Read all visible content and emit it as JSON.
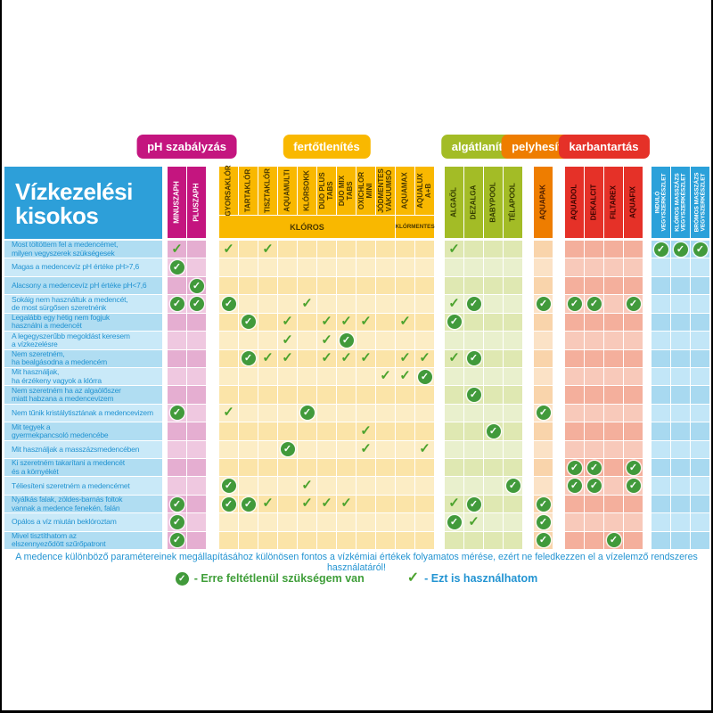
{
  "chart_data": {
    "type": "table",
    "title": "Vízkezelési kisokos",
    "footer": "A medence különböző paramétereinek megállapításához különösen fontos a vízkémiai értékek folyamatos mérése, ezért ne feledkezzen el a vízelemző rendszeres használatáról!",
    "legend": {
      "must": "- Erre feltétlenül szükségem van",
      "can": "- Ezt is használhatom"
    },
    "style": {
      "title_bg": "#2d9fd9",
      "row_label_colors": [
        "#b0ddf2",
        "#c9e9f8"
      ],
      "row_text_color": "#2394d2",
      "must_color": "#419a3b",
      "can_color": "#4ca32e"
    },
    "groups": [
      {
        "id": "ph",
        "label": "pH szabályzás",
        "color": "#c4157f",
        "cell_colors": [
          "#e5aed1",
          "#efc8e0"
        ],
        "label_color": "#ffffff"
      },
      {
        "id": "fert",
        "label": "fertőtlenítés",
        "color": "#f9b800",
        "cell_colors": [
          "#fbe4a8",
          "#fcedc5"
        ],
        "label_color": "#4a3900"
      },
      {
        "id": "alga",
        "label": "algátlanítás",
        "color": "#a3bc26",
        "cell_colors": [
          "#dfe8b2",
          "#e9f0cd"
        ],
        "label_color": "#333b00"
      },
      {
        "id": "pely",
        "label": "pelyhesítés",
        "color": "#ee7d00",
        "cell_colors": [
          "#f9d4ab",
          "#fbe2c6"
        ],
        "label_color": "#4d1d00"
      },
      {
        "id": "karb",
        "label": "karbantartás",
        "color": "#e53128",
        "cell_colors": [
          "#f4af9c",
          "#f8c9ba"
        ],
        "label_color": "#3d0400"
      },
      {
        "id": "kit",
        "label": "",
        "color": "#2ba1da",
        "cell_colors": [
          "#a8d9f0",
          "#c2e6f7"
        ],
        "label_color": "#ffffff"
      }
    ],
    "sub_bands": [
      {
        "label": "KLÓROS",
        "from": "gyorsaklor",
        "to": "jodmentes"
      },
      {
        "label": "KLÓRMENTES",
        "from": "aquamax",
        "to": "aqualux"
      }
    ],
    "columns": [
      {
        "id": "minuszaph",
        "label": "MINUSZAPH",
        "group": "ph"
      },
      {
        "id": "pluszaph",
        "label": "PLUSZAPH",
        "group": "ph"
      },
      {
        "id": "gyorsaklor",
        "label": "GYORSAKLÓR",
        "group": "fert"
      },
      {
        "id": "tartaklor",
        "label": "TARTAKLÓR",
        "group": "fert"
      },
      {
        "id": "tisztaklor",
        "label": "TISZTAKLÓR",
        "group": "fert"
      },
      {
        "id": "aquamulti",
        "label": "AQUAMULTI",
        "group": "fert"
      },
      {
        "id": "klorsokk",
        "label": "KLÓRSOKK",
        "group": "fert"
      },
      {
        "id": "duoplus",
        "label": "DUO PLUS\nTABS",
        "group": "fert"
      },
      {
        "id": "duomix",
        "label": "DUO MIX\nTABS",
        "group": "fert"
      },
      {
        "id": "oxichlor",
        "label": "OXICHLOR\nMINI",
        "group": "fert"
      },
      {
        "id": "jodmentes",
        "label": "JÓDMENTES\nVÁKUUMSÓ",
        "group": "fert"
      },
      {
        "id": "aquamax",
        "label": "AQUAMAX",
        "group": "fert"
      },
      {
        "id": "aqualux",
        "label": "AQUALUX\nA+B",
        "group": "fert"
      },
      {
        "id": "algaol",
        "label": "ALGAÖL",
        "group": "alga"
      },
      {
        "id": "dezalga",
        "label": "DEZALGA",
        "group": "alga"
      },
      {
        "id": "babypool",
        "label": "BABYPOOL",
        "group": "alga"
      },
      {
        "id": "telapool",
        "label": "TÉLAPOOL",
        "group": "alga"
      },
      {
        "id": "aquapak",
        "label": "AQUAPAK",
        "group": "pely"
      },
      {
        "id": "aquadol",
        "label": "AQUADOL",
        "group": "karb"
      },
      {
        "id": "dekalcit",
        "label": "DEKALCIT",
        "group": "karb"
      },
      {
        "id": "filtarex",
        "label": "FILTAREX",
        "group": "karb"
      },
      {
        "id": "aquafix",
        "label": "AQUAFIX",
        "group": "karb"
      },
      {
        "id": "indulo",
        "label": "INDULÓ\nVEGYSZERKÉSZLET",
        "group": "kit"
      },
      {
        "id": "kloros_masszazs",
        "label": "KLÓROS MASSZÁZS\nVEGYSZERKÉSZLET",
        "group": "kit"
      },
      {
        "id": "bromos_masszazs",
        "label": "BRÓMOS MASSZÁZS\nVEGYSZERKÉSZLET",
        "group": "kit"
      }
    ],
    "rows": [
      {
        "label": "Most töltöttem fel a medencémet,\nmilyen vegyszerek szükségesek",
        "marks": {
          "minuszaph": "can",
          "gyorsaklor": "can",
          "tisztaklor": "can",
          "algaol": "can",
          "indulo": "must",
          "kloros_masszazs": "must",
          "bromos_masszazs": "must"
        }
      },
      {
        "label": "Magas a medencevíz pH értéke pH>7,6",
        "marks": {
          "minuszaph": "must"
        }
      },
      {
        "label": "Alacsony a medencevíz pH értéke pH<7,6",
        "marks": {
          "pluszaph": "must"
        }
      },
      {
        "label": "Sokáig nem használtuk a medencét,\nde most sürgősen szeretnénk",
        "marks": {
          "minuszaph": "must",
          "pluszaph": "must",
          "gyorsaklor": "must",
          "klorsokk": "can",
          "algaol": "can",
          "dezalga": "must",
          "aquapak": "must",
          "aquadol": "must",
          "dekalcit": "must",
          "aquafix": "must"
        }
      },
      {
        "label": "Legalább egy hétig nem fogjuk\nhasználni a medencét",
        "marks": {
          "tartaklor": "must",
          "aquamulti": "can",
          "duoplus": "can",
          "duomix": "can",
          "oxichlor": "can",
          "aquamax": "can",
          "algaol": "must"
        }
      },
      {
        "label": "A legegyszerűbb megoldást keresem\na vízkezelésre",
        "marks": {
          "aquamulti": "can",
          "duoplus": "can",
          "duomix": "must"
        }
      },
      {
        "label": "Nem szeretném,\nha bealgásodna a medencém",
        "marks": {
          "tartaklor": "must",
          "tisztaklor": "can",
          "aquamulti": "can",
          "duoplus": "can",
          "duomix": "can",
          "oxichlor": "can",
          "aquamax": "can",
          "aqualux": "can",
          "algaol": "can",
          "dezalga": "must"
        }
      },
      {
        "label": "Mit használjak,\nha érzékeny vagyok a klórra",
        "marks": {
          "jodmentes": "can",
          "aquamax": "can",
          "aqualux": "must"
        }
      },
      {
        "label": "Nem szeretném ha az algaölőszer\nmiatt habzana a medencevizem",
        "marks": {
          "dezalga": "must"
        }
      },
      {
        "label": "Nem tűnik kristálytisztának a medencevizem",
        "marks": {
          "minuszaph": "must",
          "gyorsaklor": "can",
          "klorsokk": "must",
          "aquapak": "must"
        }
      },
      {
        "label": "Mit tegyek a\ngyermekpancsoló medencébe",
        "marks": {
          "oxichlor": "can",
          "babypool": "must"
        }
      },
      {
        "label": "Mit használjak a masszázsmedencében",
        "marks": {
          "aquamulti": "must",
          "oxichlor": "can",
          "aqualux": "can"
        }
      },
      {
        "label": "Ki szeretném takarítani a medencét\nés a környékét",
        "marks": {
          "aquadol": "must",
          "dekalcit": "must",
          "aquafix": "must"
        }
      },
      {
        "label": "Téliesíteni szeretném a medencémet",
        "marks": {
          "gyorsaklor": "must",
          "klorsokk": "can",
          "telapool": "must",
          "aquadol": "must",
          "dekalcit": "must",
          "aquafix": "must"
        }
      },
      {
        "label": "Nyálkás falak, zöldes-barnás foltok\nvannak a medence fenekén, falán",
        "marks": {
          "minuszaph": "must",
          "gyorsaklor": "must",
          "tartaklor": "must",
          "tisztaklor": "can",
          "klorsokk": "can",
          "duoplus": "can",
          "duomix": "can",
          "algaol": "can",
          "dezalga": "must",
          "aquapak": "must"
        }
      },
      {
        "label": "Opálos a víz miután beklóroztam",
        "marks": {
          "minuszaph": "must",
          "algaol": "must",
          "dezalga": "can",
          "aquapak": "must"
        }
      },
      {
        "label": "Mivel tisztíthatom az\nelszennyeződött szűrőpatront",
        "marks": {
          "minuszaph": "must",
          "aquapak": "must",
          "filtarex": "must"
        }
      }
    ]
  }
}
